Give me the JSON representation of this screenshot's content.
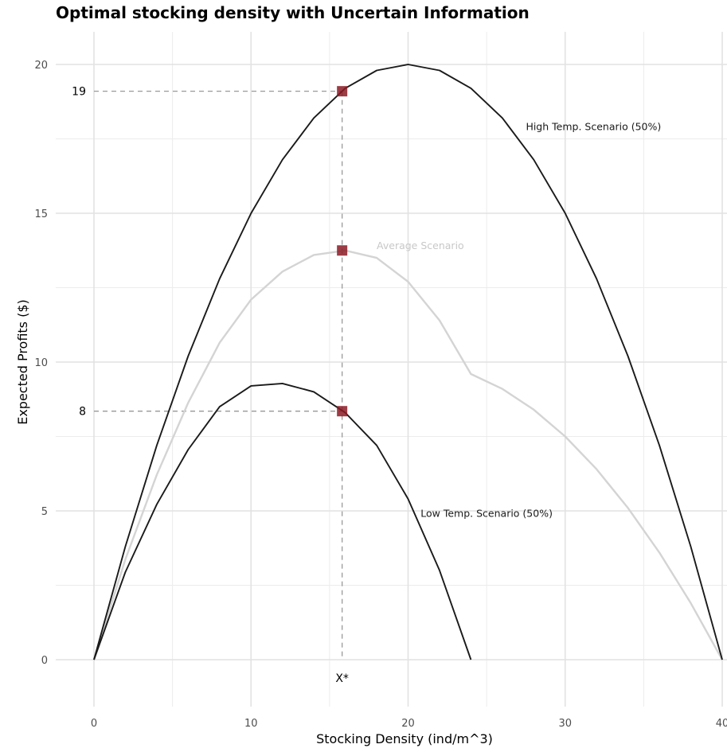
{
  "chart_data": {
    "type": "line",
    "title": "Optimal stocking density with Uncertain Information",
    "xlabel": "Stocking Density (ind/m^3)",
    "ylabel": "Expected Profits ($)",
    "xlim": [
      -2.5,
      40
    ],
    "ylim": [
      -1.6,
      21
    ],
    "x_ticks": [
      0,
      10,
      20,
      30,
      40
    ],
    "y_ticks": [
      0,
      5,
      10,
      15,
      20
    ],
    "x_tick_labels": [
      "0",
      "10",
      "20",
      "30",
      "40"
    ],
    "y_tick_labels": [
      "0",
      "5",
      "10",
      "15",
      "20"
    ],
    "grid": true,
    "series": [
      {
        "name": "High Temp. Scenario (50%)",
        "color": "#1a1a1a",
        "x": [
          0,
          2,
          4,
          6,
          8,
          10,
          12,
          14,
          16,
          18,
          20,
          22,
          24,
          26,
          28,
          30,
          32,
          34,
          36,
          38,
          40
        ],
        "y": [
          0,
          3.8,
          7.2,
          10.2,
          12.8,
          15,
          16.8,
          18.2,
          19.2,
          19.8,
          20,
          19.8,
          19.2,
          18.2,
          16.8,
          15,
          12.8,
          10.2,
          7.2,
          3.8,
          0
        ]
      },
      {
        "name": "Low Temp. Scenario (50%)",
        "color": "#1a1a1a",
        "x": [
          0,
          2,
          4,
          6,
          8,
          10,
          12,
          14,
          16,
          18,
          20,
          22,
          24
        ],
        "y": [
          0,
          2.94,
          5.22,
          7.06,
          8.5,
          9.2,
          9.28,
          9.0,
          8.3,
          7.2,
          5.4,
          3.0,
          0
        ]
      },
      {
        "name": "Average Scenario",
        "color": "#d4d4d4",
        "x": [
          0,
          2,
          4,
          6,
          8,
          10,
          12,
          14,
          16,
          18,
          20,
          22,
          24,
          26,
          28,
          30,
          32,
          34,
          36,
          38,
          40
        ],
        "y": [
          0,
          3.37,
          6.21,
          8.63,
          10.65,
          12.1,
          13.04,
          13.6,
          13.75,
          13.5,
          12.7,
          11.4,
          9.6,
          9.1,
          8.4,
          7.5,
          6.4,
          5.1,
          3.6,
          1.9,
          0
        ]
      }
    ],
    "optimal_points": [
      {
        "x": 15.8,
        "y": 19.1
      },
      {
        "x": 15.8,
        "y": 13.75
      },
      {
        "x": 15.8,
        "y": 8.35
      }
    ],
    "point_color": "#8b1a24",
    "reference_lines": [
      {
        "axis": "y",
        "value": 19.1,
        "label": "19"
      },
      {
        "axis": "y",
        "value": 8.35,
        "label": "8"
      },
      {
        "axis": "x",
        "value": 15.8,
        "label": "X*"
      }
    ],
    "annotations": [
      {
        "text": "High Temp. Scenario (50%)",
        "x": 27.5,
        "y": 17.9,
        "color": "#1a1a1a"
      },
      {
        "text": "Average Scenario",
        "x": 18,
        "y": 13.9,
        "color": "#c8c8c8"
      },
      {
        "text": "Low Temp. Scenario (50%)",
        "x": 20.8,
        "y": 4.9,
        "color": "#1a1a1a"
      }
    ]
  }
}
